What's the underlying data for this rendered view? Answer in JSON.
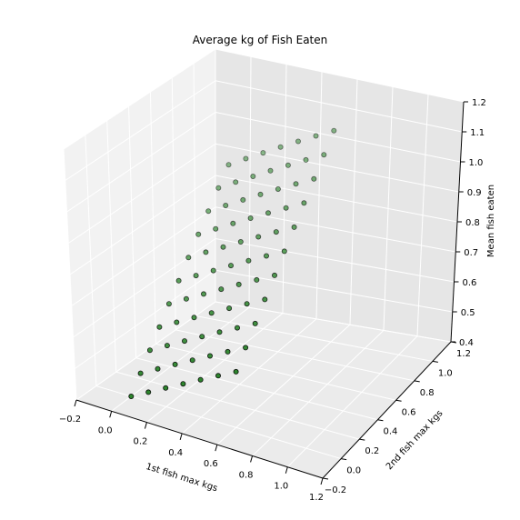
{
  "chart_data": {
    "type": "scatter",
    "projection": "3d",
    "title": "Average kg of Fish Eaten",
    "xlabel": "1st fish max kgs",
    "ylabel": "2nd fish max kgs",
    "zlabel": "Mean fish eaten",
    "xlim": [
      -0.2,
      1.2
    ],
    "ylim": [
      -0.2,
      1.2
    ],
    "zlim": [
      0.4,
      1.2
    ],
    "xticks": [
      "−0.2",
      "0.0",
      "0.2",
      "0.4",
      "0.6",
      "0.8",
      "1.0",
      "1.2"
    ],
    "yticks": [
      "−0.2",
      "0.0",
      "0.2",
      "0.4",
      "0.6",
      "0.8",
      "1.0",
      "1.2"
    ],
    "zticks": [
      "0.4",
      "0.5",
      "0.6",
      "0.7",
      "0.8",
      "0.9",
      "1.0",
      "1.1",
      "1.2"
    ],
    "grid": true,
    "marker_color": "#1a7a1a",
    "marker_edge": "#000000",
    "points": [
      {
        "x": 0.0,
        "y": 0.0,
        "z": 0.4
      },
      {
        "x": 0.0,
        "y": 0.1,
        "z": 0.45
      },
      {
        "x": 0.0,
        "y": 0.2,
        "z": 0.5
      },
      {
        "x": 0.0,
        "y": 0.3,
        "z": 0.55
      },
      {
        "x": 0.0,
        "y": 0.4,
        "z": 0.6
      },
      {
        "x": 0.0,
        "y": 0.5,
        "z": 0.65
      },
      {
        "x": 0.0,
        "y": 0.6,
        "z": 0.7
      },
      {
        "x": 0.0,
        "y": 0.7,
        "z": 0.75
      },
      {
        "x": 0.0,
        "y": 0.8,
        "z": 0.8
      },
      {
        "x": 0.0,
        "y": 0.9,
        "z": 0.85
      },
      {
        "x": 0.0,
        "y": 1.0,
        "z": 0.9
      },
      {
        "x": 0.1,
        "y": 0.0,
        "z": 0.43
      },
      {
        "x": 0.1,
        "y": 0.1,
        "z": 0.48
      },
      {
        "x": 0.1,
        "y": 0.2,
        "z": 0.53
      },
      {
        "x": 0.1,
        "y": 0.3,
        "z": 0.58
      },
      {
        "x": 0.1,
        "y": 0.4,
        "z": 0.63
      },
      {
        "x": 0.1,
        "y": 0.5,
        "z": 0.68
      },
      {
        "x": 0.1,
        "y": 0.6,
        "z": 0.73
      },
      {
        "x": 0.1,
        "y": 0.7,
        "z": 0.78
      },
      {
        "x": 0.1,
        "y": 0.8,
        "z": 0.83
      },
      {
        "x": 0.1,
        "y": 0.9,
        "z": 0.88
      },
      {
        "x": 0.1,
        "y": 1.0,
        "z": 0.93
      },
      {
        "x": 0.2,
        "y": 0.0,
        "z": 0.46
      },
      {
        "x": 0.2,
        "y": 0.1,
        "z": 0.51
      },
      {
        "x": 0.2,
        "y": 0.2,
        "z": 0.56
      },
      {
        "x": 0.2,
        "y": 0.3,
        "z": 0.61
      },
      {
        "x": 0.2,
        "y": 0.4,
        "z": 0.66
      },
      {
        "x": 0.2,
        "y": 0.5,
        "z": 0.71
      },
      {
        "x": 0.2,
        "y": 0.6,
        "z": 0.76
      },
      {
        "x": 0.2,
        "y": 0.7,
        "z": 0.81
      },
      {
        "x": 0.2,
        "y": 0.8,
        "z": 0.86
      },
      {
        "x": 0.2,
        "y": 0.9,
        "z": 0.91
      },
      {
        "x": 0.2,
        "y": 1.0,
        "z": 0.96
      },
      {
        "x": 0.3,
        "y": 0.0,
        "z": 0.49
      },
      {
        "x": 0.3,
        "y": 0.1,
        "z": 0.54
      },
      {
        "x": 0.3,
        "y": 0.2,
        "z": 0.59
      },
      {
        "x": 0.3,
        "y": 0.3,
        "z": 0.64
      },
      {
        "x": 0.3,
        "y": 0.4,
        "z": 0.69
      },
      {
        "x": 0.3,
        "y": 0.5,
        "z": 0.74
      },
      {
        "x": 0.3,
        "y": 0.6,
        "z": 0.79
      },
      {
        "x": 0.3,
        "y": 0.7,
        "z": 0.84
      },
      {
        "x": 0.3,
        "y": 0.8,
        "z": 0.89
      },
      {
        "x": 0.3,
        "y": 0.9,
        "z": 0.94
      },
      {
        "x": 0.3,
        "y": 1.0,
        "z": 0.99
      },
      {
        "x": 0.4,
        "y": 0.0,
        "z": 0.52
      },
      {
        "x": 0.4,
        "y": 0.1,
        "z": 0.57
      },
      {
        "x": 0.4,
        "y": 0.2,
        "z": 0.62
      },
      {
        "x": 0.4,
        "y": 0.3,
        "z": 0.67
      },
      {
        "x": 0.4,
        "y": 0.4,
        "z": 0.72
      },
      {
        "x": 0.4,
        "y": 0.5,
        "z": 0.77
      },
      {
        "x": 0.4,
        "y": 0.6,
        "z": 0.82
      },
      {
        "x": 0.4,
        "y": 0.7,
        "z": 0.87
      },
      {
        "x": 0.4,
        "y": 0.8,
        "z": 0.92
      },
      {
        "x": 0.4,
        "y": 0.9,
        "z": 0.97
      },
      {
        "x": 0.4,
        "y": 1.0,
        "z": 1.02
      },
      {
        "x": 0.5,
        "y": 0.0,
        "z": 0.55
      },
      {
        "x": 0.5,
        "y": 0.1,
        "z": 0.6
      },
      {
        "x": 0.5,
        "y": 0.2,
        "z": 0.65
      },
      {
        "x": 0.5,
        "y": 0.3,
        "z": 0.7
      },
      {
        "x": 0.5,
        "y": 0.4,
        "z": 0.75
      },
      {
        "x": 0.5,
        "y": 0.5,
        "z": 0.8
      },
      {
        "x": 0.5,
        "y": 0.6,
        "z": 0.85
      },
      {
        "x": 0.5,
        "y": 0.7,
        "z": 0.9
      },
      {
        "x": 0.5,
        "y": 0.8,
        "z": 0.95
      },
      {
        "x": 0.5,
        "y": 0.9,
        "z": 1.0
      },
      {
        "x": 0.5,
        "y": 1.0,
        "z": 1.05
      },
      {
        "x": 0.6,
        "y": 0.0,
        "z": 0.58
      },
      {
        "x": 0.6,
        "y": 0.1,
        "z": 0.63
      },
      {
        "x": 0.6,
        "y": 0.2,
        "z": 0.68
      },
      {
        "x": 0.6,
        "y": 0.3,
        "z": 0.73
      },
      {
        "x": 0.6,
        "y": 0.4,
        "z": 0.78
      },
      {
        "x": 0.6,
        "y": 0.5,
        "z": 0.83
      },
      {
        "x": 0.6,
        "y": 0.6,
        "z": 0.88
      },
      {
        "x": 0.6,
        "y": 0.7,
        "z": 0.93
      },
      {
        "x": 0.6,
        "y": 0.8,
        "z": 0.98
      },
      {
        "x": 0.6,
        "y": 0.9,
        "z": 1.03
      },
      {
        "x": 0.6,
        "y": 1.0,
        "z": 1.08
      }
    ]
  }
}
